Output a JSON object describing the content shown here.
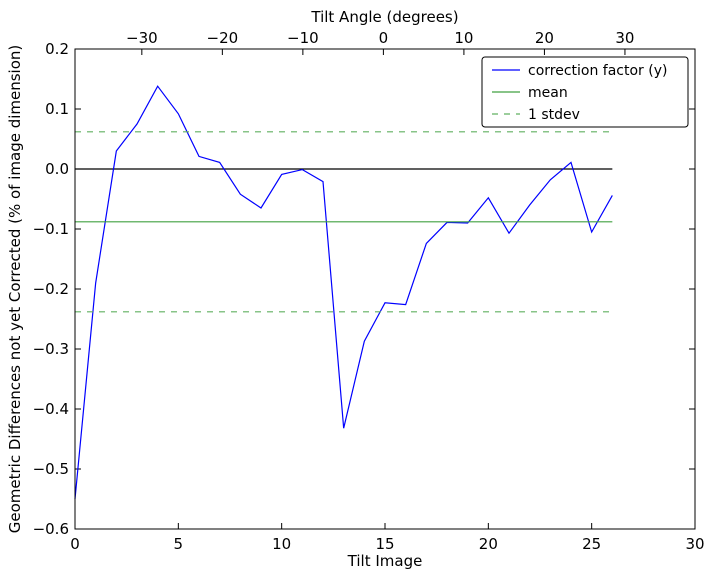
{
  "chart_data": {
    "type": "line",
    "xlabel": "Tilt Image",
    "ylabel": "Geometric Differences not yet Corrected (% of image dimension)",
    "top_xlabel": "Tilt Angle (degrees)",
    "xlim": [
      0,
      30
    ],
    "ylim": [
      -0.6,
      0.2
    ],
    "xticks": [
      0,
      5,
      10,
      15,
      20,
      25,
      30
    ],
    "xtick_labels": [
      "0",
      "5",
      "10",
      "15",
      "20",
      "25",
      "30"
    ],
    "yticks": [
      -0.6,
      -0.5,
      -0.4,
      -0.3,
      -0.2,
      -0.1,
      0.0,
      0.1,
      0.2
    ],
    "ytick_labels": [
      "−0.6",
      "−0.5",
      "−0.4",
      "−0.3",
      "−0.2",
      "−0.1",
      "0.0",
      "0.1",
      "0.2"
    ],
    "top_ticks": [
      -30,
      -20,
      -10,
      0,
      10,
      20,
      30
    ],
    "top_tick_labels": [
      "−30",
      "−20",
      "−10",
      "0",
      "10",
      "20",
      "30"
    ],
    "top_xlim": [
      -38.3,
      38.7
    ],
    "grid": false,
    "legend_position": "top-right",
    "series": [
      {
        "name": "correction factor (y)",
        "color": "#0000ff",
        "style": "solid",
        "x": [
          0,
          1,
          2,
          3,
          4,
          5,
          6,
          7,
          8,
          9,
          10,
          11,
          12,
          13,
          14,
          15,
          16,
          17,
          18,
          19,
          20,
          21,
          22,
          23,
          24,
          25,
          26
        ],
        "y": [
          -0.55,
          -0.19,
          0.03,
          0.075,
          0.138,
          0.092,
          0.021,
          0.011,
          -0.042,
          -0.065,
          -0.009,
          -0.001,
          -0.021,
          -0.432,
          -0.287,
          -0.223,
          -0.226,
          -0.124,
          -0.089,
          -0.09,
          -0.048,
          -0.107,
          -0.06,
          -0.018,
          0.011,
          -0.105,
          -0.044
        ]
      },
      {
        "name": "mean",
        "color": "#40a040",
        "style": "solid",
        "x": [
          0,
          26
        ],
        "y": [
          -0.088,
          -0.088
        ]
      },
      {
        "name": "1 stdev",
        "color": "#60b060",
        "style": "dashed",
        "x": [
          0,
          26
        ],
        "y": [
          0.062,
          0.062
        ]
      },
      {
        "name": "",
        "color": "#60b060",
        "style": "dashed",
        "x": [
          0,
          26
        ],
        "y": [
          -0.238,
          -0.238
        ]
      }
    ],
    "reference_line": {
      "color": "#000000",
      "x": [
        0,
        26
      ],
      "y": [
        0.0,
        0.0
      ]
    },
    "legend": [
      "correction factor (y)",
      "mean",
      "1 stdev"
    ]
  }
}
